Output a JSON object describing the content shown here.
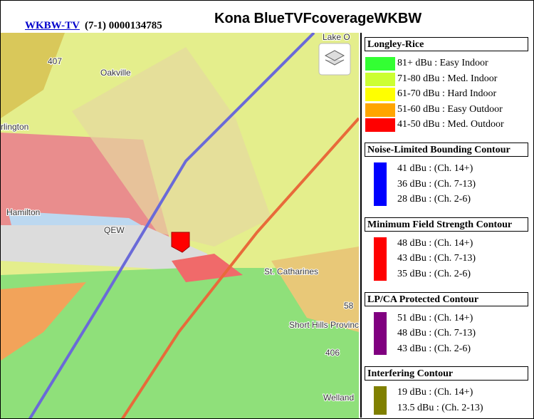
{
  "header": {
    "link": "WKBW-TV",
    "info": "(7-1) 0000134785",
    "title": "Kona BlueTVFcoverageWKBW"
  },
  "map": {
    "labels": [
      "Lake O",
      "Oakville",
      "rlington",
      "Hamilton",
      "QEW",
      "St. Catharines",
      "Short Hills Provincial Park",
      "Welland",
      "407",
      "406",
      "58"
    ]
  },
  "legend": {
    "sections": [
      {
        "title": "Longley-Rice",
        "items": [
          {
            "label": "81+ dBu : Easy Indoor",
            "color": "#33ff33"
          },
          {
            "label": "71-80 dBu : Med. Indoor",
            "color": "#ccff33"
          },
          {
            "label": "61-70 dBu : Hard Indoor",
            "color": "#ffff00"
          },
          {
            "label": "51-60 dBu : Easy Outdoor",
            "color": "#ffa500"
          },
          {
            "label": "41-50 dBu : Med. Outdoor",
            "color": "#ff0000"
          }
        ]
      },
      {
        "title": "Noise-Limited Bounding Contour",
        "color": "#0000ff",
        "items": [
          {
            "label": "41 dBu : (Ch. 14+)"
          },
          {
            "label": "36 dBu : (Ch. 7-13)"
          },
          {
            "label": "28 dBu : (Ch. 2-6)"
          }
        ]
      },
      {
        "title": "Minimum Field Strength Contour",
        "color": "#ff0000",
        "items": [
          {
            "label": "48 dBu : (Ch. 14+)"
          },
          {
            "label": "43 dBu : (Ch. 7-13)"
          },
          {
            "label": "35 dBu : (Ch. 2-6)"
          }
        ]
      },
      {
        "title": "LP/CA Protected Contour",
        "color": "#800080",
        "items": [
          {
            "label": "51 dBu : (Ch. 14+)"
          },
          {
            "label": "48 dBu : (Ch. 7-13)"
          },
          {
            "label": "43 dBu : (Ch. 2-6)"
          }
        ]
      },
      {
        "title": "Interfering Contour",
        "color": "#808000",
        "items": [
          {
            "label": "19 dBu : (Ch. 14+)"
          },
          {
            "label": "13.5 dBu : (Ch. 2-13)"
          }
        ]
      }
    ]
  }
}
